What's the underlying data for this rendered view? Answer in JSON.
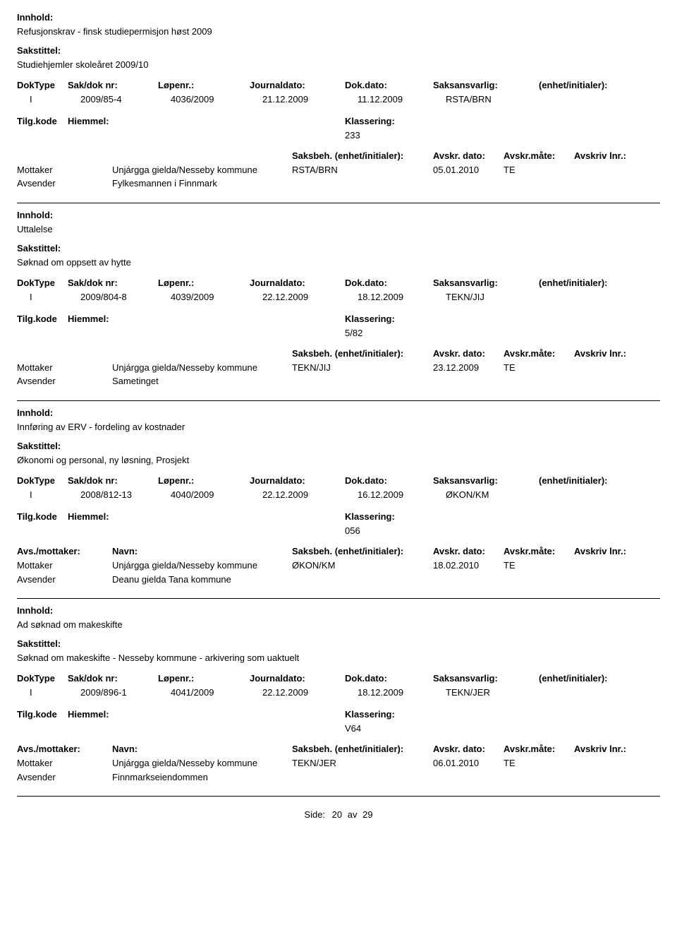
{
  "labels": {
    "innhold": "Innhold:",
    "sakstittel": "Sakstittel:",
    "doktype": "DokType",
    "sakdok": "Sak/dok nr:",
    "lopenr": "Løpenr.:",
    "journaldato": "Journaldato:",
    "dokdato": "Dok.dato:",
    "saksansvarlig": "Saksansvarlig:",
    "enhet": "(enhet/initialer):",
    "tilgkode": "Tilg.kode",
    "hjemmel": "Hiemmel:",
    "klassering": "Klassering:",
    "avsmottaker": "Avs./mottaker:",
    "navn": "Navn:",
    "saksbeh": "Saksbeh.",
    "saksbeh_enhet": "(enhet/initialer):",
    "avskr_dato": "Avskr. dato:",
    "avskr_mate": "Avskr.måte:",
    "avskriv_lnr": "Avskriv lnr.:",
    "mottaker": "Mottaker",
    "avsender": "Avsender",
    "side": "Side:",
    "av": "av"
  },
  "footer": {
    "page": "20",
    "total": "29"
  },
  "entries": [
    {
      "innhold": "Refusjonskrav - finsk studiepermisjon høst 2009",
      "sakstittel": "Studiehjemler skoleåret 2009/10",
      "doktype": "I",
      "sakdok": "2009/85-4",
      "lopenr": "4036/2009",
      "journaldato": "21.12.2009",
      "dokdato": "11.12.2009",
      "saksansvarlig": "RSTA/BRN",
      "klassering": "233",
      "show_party_header": false,
      "parties": [
        {
          "role": "Mottaker",
          "navn": "Unjárgga gielda/Nesseby kommune",
          "saksbeh": "RSTA/BRN",
          "avskr_dato": "05.01.2010",
          "avskr_mate": "TE"
        },
        {
          "role": "Avsender",
          "navn": "Fylkesmannen i Finnmark",
          "saksbeh": "",
          "avskr_dato": "",
          "avskr_mate": ""
        }
      ]
    },
    {
      "innhold": "Uttalelse",
      "sakstittel": "Søknad om oppsett av hytte",
      "doktype": "I",
      "sakdok": "2009/804-8",
      "lopenr": "4039/2009",
      "journaldato": "22.12.2009",
      "dokdato": "18.12.2009",
      "saksansvarlig": "TEKN/JIJ",
      "klassering": "5/82",
      "show_party_header": false,
      "parties": [
        {
          "role": "Mottaker",
          "navn": "Unjárgga gielda/Nesseby kommune",
          "saksbeh": "TEKN/JIJ",
          "avskr_dato": "23.12.2009",
          "avskr_mate": "TE"
        },
        {
          "role": "Avsender",
          "navn": "Sametinget",
          "saksbeh": "",
          "avskr_dato": "",
          "avskr_mate": ""
        }
      ]
    },
    {
      "innhold": "Innføring av ERV - fordeling av kostnader",
      "sakstittel": "Økonomi og personal, ny løsning, Prosjekt",
      "doktype": "I",
      "sakdok": "2008/812-13",
      "lopenr": "4040/2009",
      "journaldato": "22.12.2009",
      "dokdato": "16.12.2009",
      "saksansvarlig": "ØKON/KM",
      "klassering": "056",
      "show_party_header": true,
      "parties": [
        {
          "role": "Mottaker",
          "navn": "Unjárgga gielda/Nesseby kommune",
          "saksbeh": "ØKON/KM",
          "avskr_dato": "18.02.2010",
          "avskr_mate": "TE"
        },
        {
          "role": "Avsender",
          "navn": "Deanu gielda Tana kommune",
          "saksbeh": "",
          "avskr_dato": "",
          "avskr_mate": ""
        }
      ]
    },
    {
      "innhold": "Ad søknad om makeskifte",
      "sakstittel": "Søknad om makeskifte - Nesseby kommune - arkivering som uaktuelt",
      "doktype": "I",
      "sakdok": "2009/896-1",
      "lopenr": "4041/2009",
      "journaldato": "22.12.2009",
      "dokdato": "18.12.2009",
      "saksansvarlig": "TEKN/JER",
      "klassering": "V64",
      "show_party_header": true,
      "parties": [
        {
          "role": "Mottaker",
          "navn": "Unjárgga gielda/Nesseby kommune",
          "saksbeh": "TEKN/JER",
          "avskr_dato": "06.01.2010",
          "avskr_mate": "TE"
        },
        {
          "role": "Avsender",
          "navn": "Finnmarkseiendommen",
          "saksbeh": "",
          "avskr_dato": "",
          "avskr_mate": ""
        }
      ]
    }
  ]
}
